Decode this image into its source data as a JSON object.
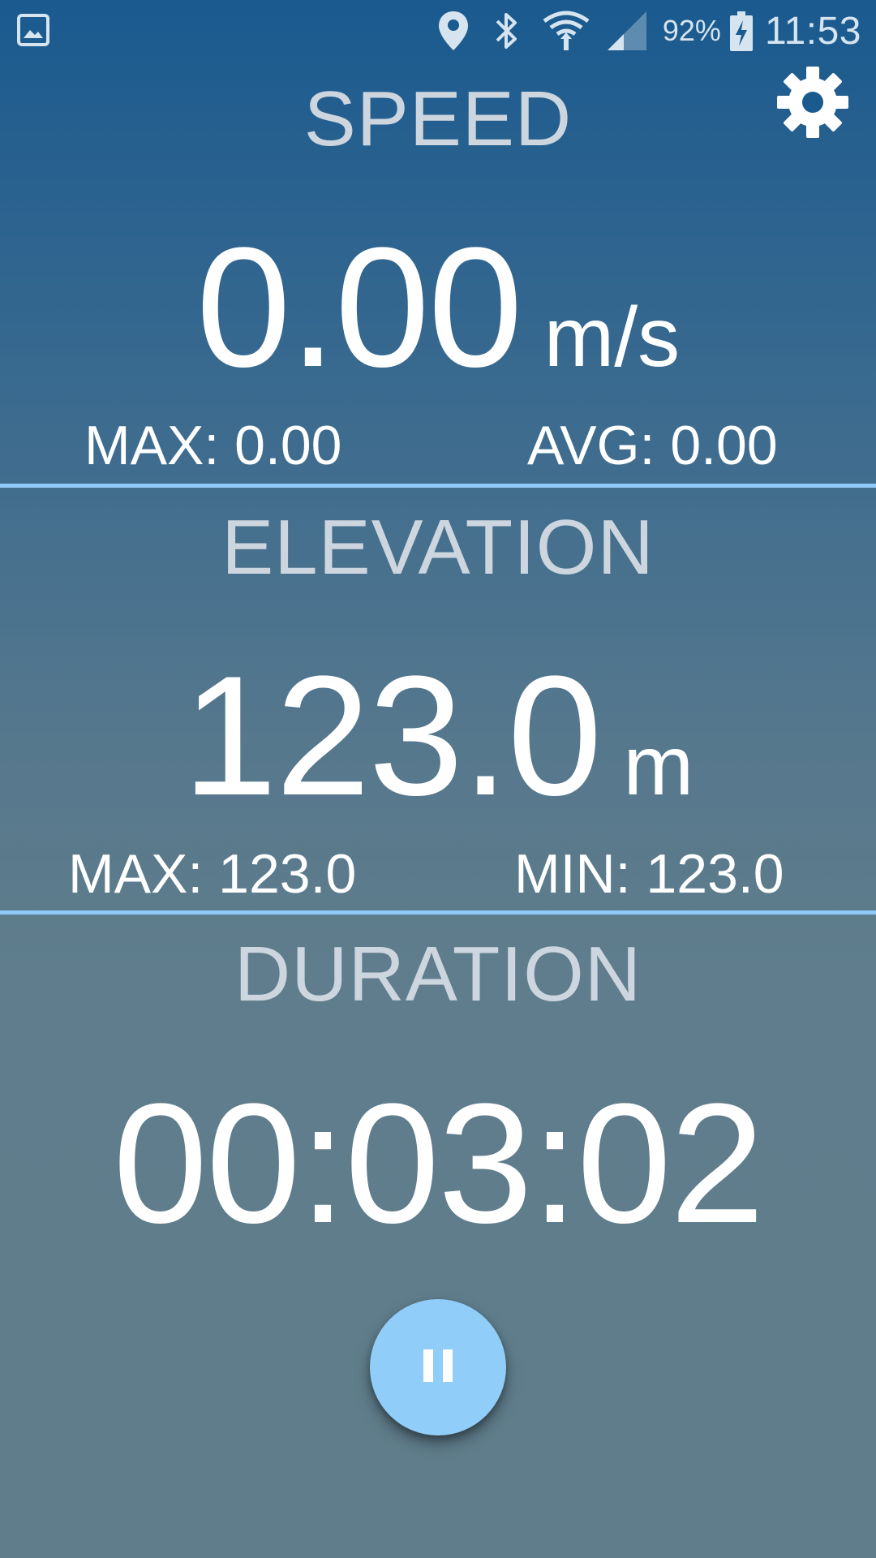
{
  "status_bar": {
    "battery_percent": "92%",
    "time": "11:53",
    "icons": [
      "image-icon",
      "location-pin-icon",
      "bluetooth-icon",
      "wifi-icon",
      "cell-signal-icon",
      "battery-charging-icon"
    ]
  },
  "toolbar": {
    "settings_icon": "gear-icon"
  },
  "speed": {
    "title": "SPEED",
    "value": "0.00",
    "unit": "m/s",
    "max_label": "MAX: 0.00",
    "avg_label": "AVG: 0.00"
  },
  "elevation": {
    "title": "ELEVATION",
    "value": "123.0",
    "unit": "m",
    "max_label": "MAX: 123.0",
    "min_label": "MIN: 123.0"
  },
  "duration": {
    "title": "DURATION",
    "value": "00:03:02"
  },
  "controls": {
    "pause_icon": "pause-icon"
  },
  "colors": {
    "background_top": "#1a5a8f",
    "background_bottom": "#607d8b",
    "divider": "#90caf9",
    "fab": "#90cdf9",
    "title_text": "#cdd6de",
    "value_text": "#ffffff"
  }
}
